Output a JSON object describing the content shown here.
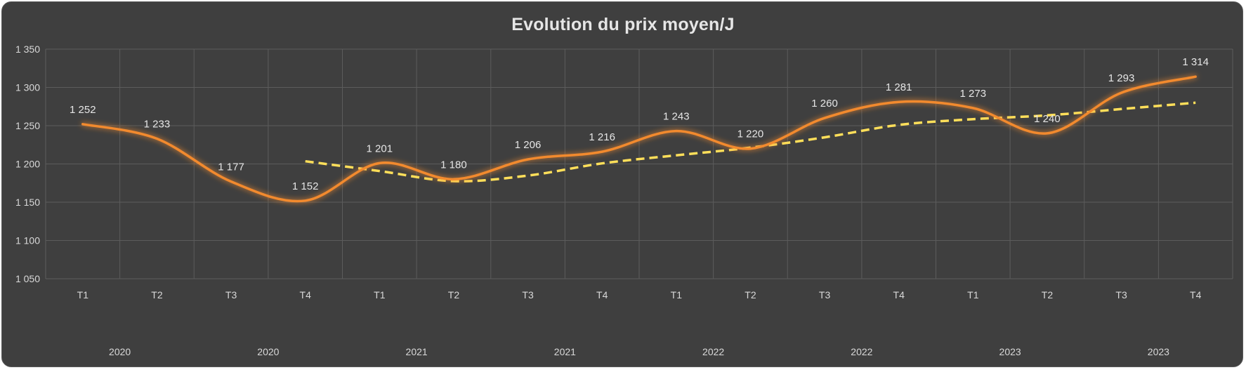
{
  "chart_data": {
    "type": "line",
    "title": "Evolution du prix moyen/J",
    "xlabel": "",
    "ylabel": "",
    "ylim": [
      1050,
      1350
    ],
    "yticks": [
      1050,
      1100,
      1150,
      1200,
      1250,
      1300,
      1350
    ],
    "ytick_labels": [
      "1 050",
      "1 100",
      "1 150",
      "1 200",
      "1 250",
      "1 300",
      "1 350"
    ],
    "categories": [
      "T1",
      "T2",
      "T3",
      "T4",
      "T1",
      "T2",
      "T3",
      "T4",
      "T1",
      "T2",
      "T3",
      "T4",
      "T1",
      "T2",
      "T3",
      "T4"
    ],
    "years": [
      "2020",
      "2020",
      "2021",
      "2021",
      "2022",
      "2022",
      "2023",
      "2023"
    ],
    "grid": true,
    "legend": "none",
    "series": [
      {
        "kind": "smoothed line with data labels",
        "color": "#f28a2e",
        "values": [
          1252,
          1233,
          1177,
          1152,
          1201,
          1180,
          1206,
          1216,
          1243,
          1220,
          1260,
          1281,
          1273,
          1240,
          1293,
          1314
        ],
        "labels": [
          "1 252",
          "1 233",
          "1 177",
          "1 152",
          "1 201",
          "1 180",
          "1 206",
          "1 216",
          "1 243",
          "1 220",
          "1 260",
          "1 281",
          "1 273",
          "1 240",
          "1 293",
          "1 314"
        ]
      },
      {
        "kind": "dashed moving-average trendline",
        "color": "#ffdf5a",
        "values": [
          null,
          null,
          null,
          1203.5,
          1190.75,
          1177.5,
          1184.75,
          1200.75,
          1211.25,
          1221.25,
          1234.75,
          1251,
          1258.5,
          1263.5,
          1271.75,
          1280
        ]
      }
    ]
  }
}
